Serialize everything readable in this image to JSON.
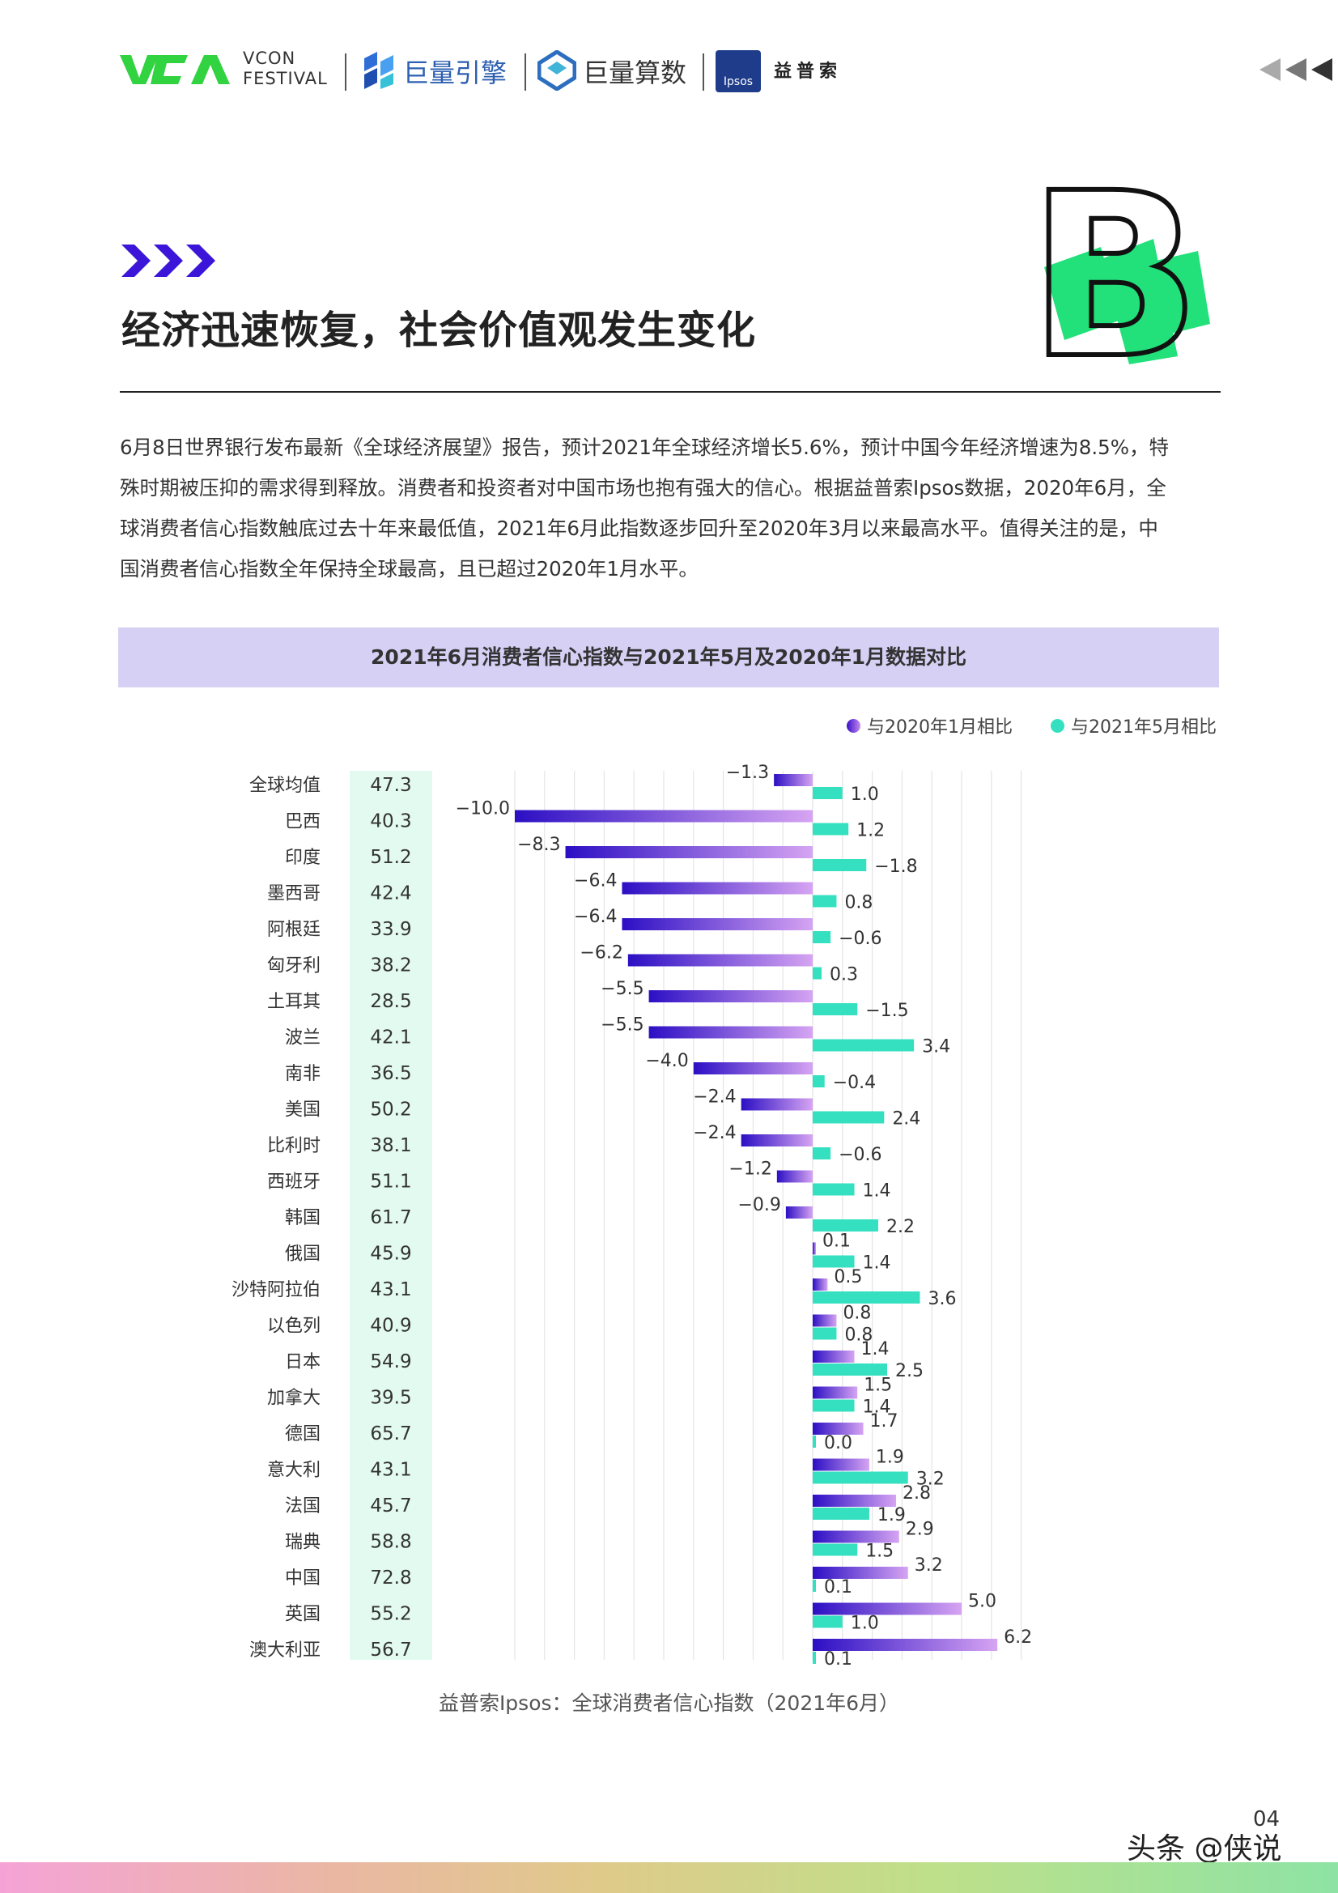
{
  "header": {
    "festival_line1": "VCON",
    "festival_line2": "FESTIVAL",
    "brand1": "巨量引擎",
    "brand2": "巨量算数",
    "ipsos_box": "Ipsos",
    "ipsos_name": "益普索"
  },
  "section": {
    "title": "经济迅速恢复，社会价值观发生变化",
    "big_letter": "B"
  },
  "intro": [
    "6月8日世界银行发布最新《全球经济展望》报告，预计2021年全球经济增长5.6%，预计中国今年经济增速为8.5%，特",
    "殊时期被压抑的需求得到释放。消费者和投资者对中国市场也抱有强大的信心。根据益普索Ipsos数据，2020年6月，全",
    "球消费者信心指数触底过去十年来最低值，2021年6月此指数逐步回升至2020年3月以来最高水平。值得关注的是，中",
    "国消费者信心指数全年保持全球最高，且已超过2020年1月水平。"
  ],
  "chart_data": {
    "type": "bar",
    "title": "2021年6月消费者信心指数与2021年5月及2020年1月数据对比",
    "categories": [
      "全球均值",
      "巴西",
      "印度",
      "墨西哥",
      "阿根廷",
      "匈牙利",
      "土耳其",
      "波兰",
      "南非",
      "美国",
      "比利时",
      "西班牙",
      "韩国",
      "俄国",
      "沙特阿拉伯",
      "以色列",
      "日本",
      "加拿大",
      "德国",
      "意大利",
      "法国",
      "瑞典",
      "中国",
      "英国",
      "澳大利亚"
    ],
    "index_values": [
      47.3,
      40.3,
      51.2,
      42.4,
      33.9,
      38.2,
      28.5,
      42.1,
      36.5,
      50.2,
      38.1,
      51.1,
      61.7,
      45.9,
      43.1,
      40.9,
      54.9,
      39.5,
      65.7,
      43.1,
      45.7,
      58.8,
      72.8,
      55.2,
      56.7
    ],
    "series": [
      {
        "name": "与2020年1月相比",
        "color": "#5b2fd6",
        "values": [
          -1.3,
          -10.0,
          -8.3,
          -6.4,
          -6.4,
          -6.2,
          -5.5,
          -5.5,
          -4.0,
          -2.4,
          -2.4,
          -1.2,
          -0.9,
          0.1,
          0.5,
          0.8,
          1.4,
          1.5,
          1.7,
          1.9,
          2.8,
          2.9,
          3.2,
          5.0,
          6.2
        ]
      },
      {
        "name": "与2021年5月相比",
        "color": "#35e0c0",
        "values": [
          1.0,
          1.2,
          -1.8,
          0.8,
          -0.6,
          0.3,
          -1.5,
          3.4,
          -0.4,
          2.4,
          -0.6,
          1.4,
          2.2,
          1.4,
          3.6,
          0.8,
          2.5,
          1.4,
          0.0,
          3.2,
          1.9,
          1.5,
          0.1,
          1.0,
          0.1
        ]
      }
    ],
    "xlim": [
      -10,
      10
    ],
    "grid": true,
    "legend_position": "top-right",
    "source": "益普索Ipsos：全球消费者信心指数（2021年6月）"
  },
  "footer": {
    "page_number": "04",
    "watermark": "头条 @侠说"
  }
}
